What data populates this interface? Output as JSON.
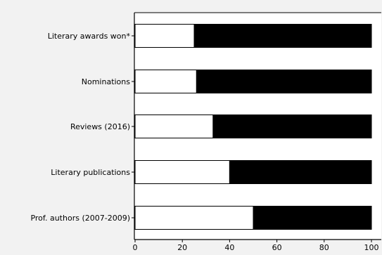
{
  "chart_data": {
    "type": "bar",
    "orientation": "horizontal",
    "stacked": true,
    "title": "",
    "xlabel": "",
    "ylabel": "",
    "categories": [
      "Literary awards won*",
      "Nominations",
      "Reviews (2016)",
      "Literary publications",
      "Prof. authors (2007-2009)"
    ],
    "series": [
      {
        "values": [
          25,
          26,
          33,
          40,
          50
        ],
        "color": "#ffffff"
      },
      {
        "values": [
          75,
          74,
          67,
          60,
          50
        ],
        "color": "#000000"
      }
    ],
    "xlim": [
      0,
      100
    ],
    "xticks": [
      0,
      20,
      40,
      60,
      80,
      100
    ],
    "grid": false,
    "legend": "none"
  },
  "colors": {
    "background": "#f2f2f2",
    "plot_background": "#ffffff",
    "axis": "#000000"
  }
}
